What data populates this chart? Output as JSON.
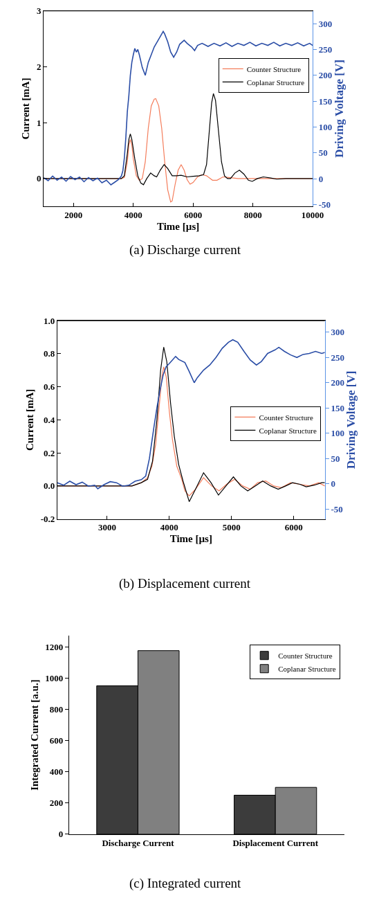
{
  "chart_data": [
    {
      "type": "line",
      "title": "(a) Discharge current",
      "xlabel": "Time [µs]",
      "ylabel": "Current [mA]",
      "y2label": "Driving Voltage [V]",
      "xlim": [
        1000,
        10000
      ],
      "xticks": [
        2000,
        4000,
        6000,
        8000,
        10000
      ],
      "ylim": [
        -0.5,
        3
      ],
      "yticks": [
        0,
        1,
        2,
        3
      ],
      "y2lim": [
        -54,
        325
      ],
      "y2ticks": [
        -50,
        0,
        50,
        100,
        150,
        200,
        250,
        300
      ],
      "legend": "right",
      "series": [
        {
          "name": null,
          "color": "#2a4da6",
          "axis": "y2",
          "x": [
            1000,
            1150,
            1300,
            1450,
            1600,
            1750,
            1900,
            2050,
            2200,
            2350,
            2500,
            2650,
            2800,
            2950,
            3100,
            3250,
            3400,
            3500,
            3600,
            3650,
            3700,
            3750,
            3800,
            3850,
            3900,
            3950,
            4000,
            4050,
            4100,
            4150,
            4200,
            4300,
            4400,
            4500,
            4600,
            4700,
            4800,
            4900,
            5000,
            5050,
            5150,
            5250,
            5350,
            5450,
            5550,
            5700,
            5800,
            5950,
            6050,
            6150,
            6300,
            6500,
            6700,
            6900,
            7100,
            7300,
            7500,
            7700,
            7900,
            8100,
            8300,
            8500,
            8700,
            8900,
            9100,
            9300,
            9500,
            9700,
            9900,
            10000
          ],
          "values": [
            2,
            -4,
            5,
            -3,
            3,
            -5,
            4,
            -2,
            3,
            -6,
            2,
            -4,
            1,
            -8,
            -3,
            -12,
            -6,
            -2,
            5,
            15,
            40,
            80,
            130,
            160,
            200,
            225,
            240,
            252,
            245,
            250,
            240,
            215,
            200,
            225,
            240,
            255,
            265,
            275,
            285,
            280,
            265,
            245,
            235,
            245,
            260,
            268,
            262,
            255,
            248,
            258,
            262,
            256,
            262,
            257,
            263,
            256,
            262,
            258,
            264,
            257,
            262,
            258,
            264,
            257,
            262,
            258,
            263,
            257,
            262,
            258
          ]
        },
        {
          "name": "Counter Structure",
          "color": "#f47c5a",
          "x": [
            1000,
            3600,
            3700,
            3800,
            3850,
            3900,
            3950,
            4000,
            4100,
            4200,
            4300,
            4400,
            4500,
            4600,
            4700,
            4750,
            4850,
            4950,
            5050,
            5150,
            5250,
            5300,
            5400,
            5500,
            5600,
            5700,
            5800,
            5900,
            6000,
            6150,
            6300,
            6450,
            6650,
            6800,
            7000,
            7200,
            7500,
            8000,
            10000
          ],
          "values": [
            0,
            0,
            0.02,
            0.3,
            0.6,
            0.7,
            0.6,
            0.35,
            0.05,
            -0.03,
            0,
            0.3,
            0.9,
            1.3,
            1.42,
            1.43,
            1.3,
            0.9,
            0.3,
            -0.2,
            -0.42,
            -0.4,
            -0.1,
            0.15,
            0.25,
            0.15,
            -0.02,
            -0.1,
            -0.07,
            0.03,
            0.07,
            0.05,
            -0.03,
            -0.03,
            0.03,
            0.02,
            0,
            0,
            0
          ]
        },
        {
          "name": "Coplanar Structure",
          "color": "#000000",
          "x": [
            1000,
            3600,
            3700,
            3800,
            3850,
            3900,
            3950,
            4050,
            4150,
            4250,
            4340,
            4450,
            4580,
            4700,
            4780,
            4900,
            5030,
            5150,
            5300,
            5450,
            5600,
            5800,
            6000,
            6200,
            6350,
            6450,
            6550,
            6620,
            6680,
            6750,
            6850,
            6950,
            7050,
            7150,
            7250,
            7400,
            7550,
            7700,
            7850,
            7980,
            8150,
            8350,
            8600,
            8800,
            9100,
            10000
          ],
          "values": [
            0,
            0,
            0.05,
            0.45,
            0.7,
            0.8,
            0.7,
            0.35,
            0.05,
            -0.08,
            -0.11,
            0,
            0.1,
            0.05,
            0.03,
            0.15,
            0.25,
            0.18,
            0.05,
            0.05,
            0.06,
            0.03,
            0.04,
            0.05,
            0.07,
            0.25,
            0.9,
            1.35,
            1.52,
            1.4,
            0.85,
            0.3,
            0.05,
            0,
            0,
            0.1,
            0.15,
            0.08,
            -0.03,
            -0.05,
            0,
            0.03,
            0.01,
            -0.01,
            0,
            0
          ]
        }
      ]
    },
    {
      "type": "line",
      "title": "(b) Displacement current",
      "xlabel": "Time [µs]",
      "ylabel": "Current [mA]",
      "y2label": "Driving Voltage [V]",
      "xlim": [
        2200,
        6500
      ],
      "xticks": [
        3000,
        4000,
        5000,
        6000
      ],
      "ylim": [
        -0.2,
        1.0
      ],
      "yticks": [
        {
          "value": -0.2,
          "label": "-0.2"
        },
        {
          "value": 0,
          "label": "0.0"
        },
        {
          "value": 0.2,
          "label": "0.2"
        },
        {
          "value": 0.4,
          "label": "0.4"
        },
        {
          "value": 0.6,
          "label": "0.6"
        },
        {
          "value": 0.8,
          "label": "0.8"
        },
        {
          "value": 1.0,
          "label": "1.0"
        }
      ],
      "y2lim": [
        -70,
        323
      ],
      "y2ticks": [
        -50,
        0,
        50,
        100,
        150,
        200,
        250,
        300
      ],
      "legend": "right",
      "series": [
        {
          "name": null,
          "color": "#2a4da6",
          "axis": "y2",
          "x": [
            2200,
            2300,
            2400,
            2500,
            2600,
            2700,
            2800,
            2850,
            2950,
            3050,
            3150,
            3250,
            3350,
            3450,
            3550,
            3620,
            3680,
            3750,
            3800,
            3850,
            3900,
            3950,
            4000,
            4050,
            4100,
            4150,
            4250,
            4320,
            4400,
            4450,
            4550,
            4650,
            4750,
            4850,
            4950,
            5020,
            5100,
            5200,
            5300,
            5400,
            5480,
            5580,
            5700,
            5760,
            5850,
            5950,
            6050,
            6150,
            6250,
            6350,
            6450,
            6500
          ],
          "values": [
            2,
            -3,
            5,
            -2,
            3,
            -5,
            -3,
            -10,
            -2,
            4,
            2,
            -5,
            -3,
            5,
            8,
            15,
            50,
            110,
            150,
            185,
            215,
            232,
            238,
            245,
            252,
            246,
            240,
            222,
            200,
            210,
            225,
            235,
            250,
            268,
            280,
            285,
            280,
            262,
            245,
            235,
            242,
            258,
            265,
            270,
            262,
            255,
            250,
            256,
            258,
            262,
            258,
            260
          ]
        },
        {
          "name": "Counter Structure",
          "color": "#f47c5a",
          "x": [
            2200,
            3400,
            3550,
            3650,
            3720,
            3780,
            3830,
            3880,
            3910,
            3950,
            4000,
            4050,
            4120,
            4200,
            4250,
            4320,
            4420,
            4550,
            4680,
            4800,
            4920,
            5050,
            5180,
            5300,
            5420,
            5550,
            5680,
            5800,
            5950,
            6100,
            6250,
            6400,
            6500
          ],
          "values": [
            0,
            0,
            0.02,
            0.05,
            0.12,
            0.25,
            0.45,
            0.66,
            0.72,
            0.66,
            0.45,
            0.28,
            0.12,
            0.04,
            -0.03,
            -0.06,
            -0.02,
            0.05,
            0,
            -0.03,
            0.01,
            0.04,
            0,
            -0.02,
            0.02,
            0.03,
            0,
            -0.01,
            0.02,
            0.01,
            0,
            0.02,
            0
          ]
        },
        {
          "name": "Coplanar Structure",
          "color": "#000000",
          "x": [
            2200,
            3400,
            3550,
            3650,
            3730,
            3800,
            3860,
            3910,
            3960,
            4020,
            4080,
            4150,
            4220,
            4320,
            4420,
            4550,
            4670,
            4790,
            4910,
            5030,
            5150,
            5260,
            5380,
            5500,
            5630,
            5750,
            5870,
            5980,
            6100,
            6200,
            6330,
            6450,
            6500
          ],
          "values": [
            0,
            0,
            0.02,
            0.04,
            0.15,
            0.4,
            0.7,
            0.84,
            0.75,
            0.5,
            0.3,
            0.13,
            0.03,
            -0.095,
            -0.02,
            0.08,
            0.02,
            -0.055,
            0,
            0.055,
            0,
            -0.03,
            0,
            0.03,
            0,
            -0.02,
            0,
            0.02,
            0.01,
            -0.005,
            0.005,
            0.02,
            0.02
          ]
        }
      ]
    },
    {
      "type": "bar",
      "title": "(c) Integrated current",
      "ylabel": "Integrated Current [a.u.]",
      "categories": [
        "Discharge Current",
        "Displacement Current"
      ],
      "ylim": [
        0,
        1270
      ],
      "yticks": [
        0,
        200,
        400,
        600,
        800,
        1000,
        1200
      ],
      "legend": "top right",
      "series": [
        {
          "name": "Counter Structure",
          "color": "#3c3c3c",
          "values": [
            950,
            250
          ]
        },
        {
          "name": "Coplanar Structure",
          "color": "#808080",
          "values": [
            1175,
            300
          ]
        }
      ]
    }
  ]
}
